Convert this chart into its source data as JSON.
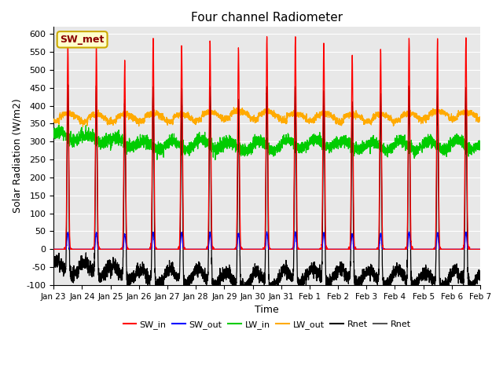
{
  "title": "Four channel Radiometer",
  "xlabel": "Time",
  "ylabel": "Solar Radiation (W/m2)",
  "ylim": [
    -100,
    620
  ],
  "tick_labels": [
    "Jan 23",
    "Jan 24",
    "Jan 25",
    "Jan 26",
    "Jan 27",
    "Jan 28",
    "Jan 29",
    "Jan 30",
    "Jan 31",
    "Feb 1",
    "Feb 2",
    "Feb 3",
    "Feb 4",
    "Feb 5",
    "Feb 6",
    "Feb 7"
  ],
  "legend_entries": [
    "SW_in",
    "SW_out",
    "LW_in",
    "LW_out",
    "Rnet",
    "Rnet"
  ],
  "legend_colors": [
    "#ff0000",
    "#0000ff",
    "#00cc00",
    "#ffaa00",
    "#000000",
    "#555555"
  ],
  "station_label": "SW_met",
  "background_color": "#e8e8e8",
  "grid_color": "#ffffff",
  "num_days": 15,
  "points_per_day": 288,
  "sw_peaks": [
    570,
    570,
    520,
    590,
    570,
    575,
    560,
    590,
    590,
    570,
    540,
    555,
    590,
    585,
    590
  ],
  "lw_in_base": [
    310,
    300,
    290,
    285,
    282,
    288,
    282,
    290,
    295,
    300,
    292,
    292,
    298,
    298,
    302
  ],
  "lw_out_base": [
    358,
    355,
    355,
    358,
    355,
    362,
    365,
    362,
    358,
    358,
    355,
    355,
    358,
    365,
    362
  ],
  "sw_in_color": "#ff0000",
  "sw_out_color": "#0000ff",
  "lw_in_color": "#00cc00",
  "lw_out_color": "#ffaa00",
  "rnet_color": "#000000",
  "yticks": [
    -100,
    -50,
    0,
    50,
    100,
    150,
    200,
    250,
    300,
    350,
    400,
    450,
    500,
    550,
    600
  ]
}
